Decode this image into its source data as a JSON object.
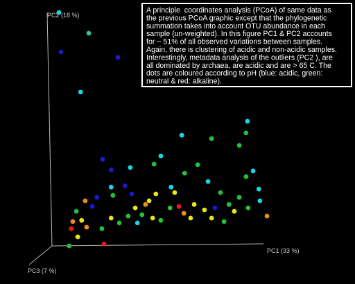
{
  "chart_data": {
    "type": "scatter",
    "annotation_lines": [
      "A principle  coordinates analysis (PCoA) of same data as",
      "the previous PCoA graphic except that the phylogenetic",
      "summation takes into account OTU abundance in each",
      "sample (un-weighted). In this figure PC1 & PC2 accounts",
      "for ~ 51% of all observed variations between samples.",
      "Again, there is clustering of acidic and non-acidic samples.",
      "Interestingly, metadata analysis of the outliers (PC2 ), are",
      "all dominated by archaea, are acidic and are > 65 C. The",
      "dots are coloured according to pH (blue: acidic, green:",
      "neutral & red: alkaline)."
    ],
    "x_label": "PC1 (33 %)",
    "y_label": "PC2 (18 %)",
    "z_label": "PC3 (7 %)",
    "xlim": [
      0,
      100
    ],
    "ylim": [
      0,
      100
    ],
    "x": [
      16.6,
      25,
      17.2,
      33.2,
      22.7,
      51.2,
      69.7,
      69.3,
      67.4,
      59.6,
      28.9,
      31.3,
      36.7,
      43.4,
      45.3,
      52,
      48.2,
      55.7,
      58.6,
      69.3,
      71.3,
      72.9,
      31.3,
      35.2,
      31.8,
      27.3,
      26,
      24,
      21.5,
      20.5,
      23,
      24.4,
      20.1,
      21.9,
      19.5,
      28.7,
      29.3,
      31.3,
      33.6,
      36.1,
      38.1,
      41,
      42,
      43.9,
      40,
      43,
      47.9,
      50.4,
      51.8,
      54.7,
      57.6,
      60.5,
      62.1,
      64.5,
      66,
      63.1,
      67.4,
      69.9,
      73.2,
      75.2,
      49.2,
      38.7,
      45.3,
      53.7,
      59.6,
      37.1
    ],
    "values": [
      95.6,
      88.3,
      81.7,
      79.8,
      67.6,
      52.4,
      57.3,
      53.2,
      48.8,
      51.2,
      43.9,
      40.2,
      41,
      42.2,
      45.1,
      39,
      34.1,
      42,
      36.1,
      37.8,
      39.8,
      33.4,
      34.1,
      34.6,
      31.2,
      30.5,
      27.3,
      29.3,
      25.6,
      22,
      22.4,
      20,
      19.5,
      16.6,
      13.4,
      19.5,
      14.1,
      23.2,
      21.5,
      23.9,
      26.8,
      28,
      29.3,
      31.7,
      24.4,
      23.2,
      26.8,
      27.3,
      24.9,
      28,
      26.1,
      26.8,
      32.2,
      28,
      25.6,
      22,
      30.5,
      26.8,
      29.3,
      23.9,
      32.2,
      21.5,
      22.4,
      23.2,
      23.2,
      31.7
    ],
    "colors": [
      "#19d6e6",
      "#2ec6a0",
      "#1a1acc",
      "#1a1acc",
      "#19d6e6",
      "#19d6e6",
      "#19d6e6",
      "#22c23a",
      "#22c23a",
      "#22c23a",
      "#1a1acc",
      "#1a1acc",
      "#19d6e6",
      "#22c23a",
      "#19d6e6",
      "#22c23a",
      "#19d6e6",
      "#22c23a",
      "#19d6e6",
      "#22c23a",
      "#19d6e6",
      "#19d6e6",
      "#19d6e6",
      "#1a1acc",
      "#22c23a",
      "#1a1acc",
      "#1a1acc",
      "#f08c1a",
      "#22c23a",
      "#f08c1a",
      "#e6e619",
      "#f08c1a",
      "#e61919",
      "#e6e619",
      "#22c23a",
      "#22c23a",
      "#e61919",
      "#e6e619",
      "#22c23a",
      "#22c23a",
      "#e6e619",
      "#f08c1a",
      "#e6e619",
      "#e6e619",
      "#22c23a",
      "#e6e619",
      "#22c23a",
      "#e61919",
      "#f08c1a",
      "#e6e619",
      "#e6e619",
      "#1a1acc",
      "#22c23a",
      "#22c23a",
      "#e6e619",
      "#22c23a",
      "#22c23a",
      "#22c23a",
      "#19d6e6",
      "#f08c1a",
      "#e6e619",
      "#19d6e6",
      "#22c23a",
      "#e6e619",
      "#e6e619",
      "#1a1acc"
    ]
  }
}
